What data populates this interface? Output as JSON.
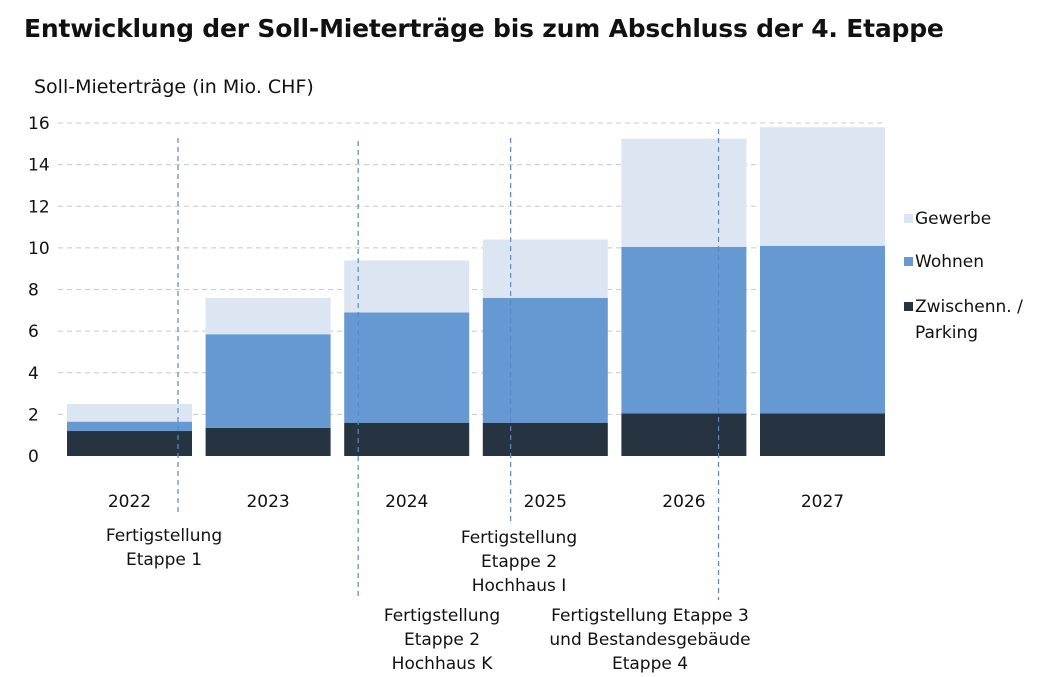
{
  "title": "Entwicklung der Soll-Mieterträge bis zum Abschluss der 4. Etappe",
  "colors": {
    "gewerbe": "#dce6f2",
    "wohnen": "#6699d1",
    "parking": "#263341",
    "grid": "#c8c8c8",
    "marker": "#5b87c6"
  },
  "chart_data": {
    "type": "bar",
    "stacked": true,
    "ylabel": "Soll-Mieterträge (in Mio. CHF)",
    "ylim": [
      0,
      16
    ],
    "yticks": [
      0,
      2,
      4,
      6,
      8,
      10,
      12,
      14,
      16
    ],
    "grid": true,
    "legend_position": "right",
    "categories": [
      "2022",
      "2023",
      "2024",
      "2025",
      "2026",
      "2027"
    ],
    "series": [
      {
        "name": "Zwischenn. / Parking",
        "color": "#263341",
        "values": [
          1.2,
          1.35,
          1.6,
          1.6,
          2.05,
          2.05
        ]
      },
      {
        "name": "Wohnen",
        "color": "#6699d1",
        "values": [
          0.45,
          4.5,
          5.3,
          6.0,
          8.0,
          8.05
        ]
      },
      {
        "name": "Gewerbe",
        "color": "#dce6f2",
        "values": [
          0.85,
          1.75,
          2.5,
          2.8,
          5.2,
          5.7
        ]
      }
    ],
    "legend_order": [
      "Gewerbe",
      "Wohnen",
      "Zwischenn. / Parking"
    ],
    "annotations": [
      {
        "text": "Fertigstellung\nEtappe 1",
        "at_category": "2022",
        "offset": 0.35
      },
      {
        "text": "Fertigstellung\nEtappe 2\nHochhaus K",
        "at_category": "2024",
        "offset": -0.35
      },
      {
        "text": "Fertigstellung\nEtappe 2\nHochhaus I",
        "at_category": "2025",
        "offset": -0.25
      },
      {
        "text": "Fertigstellung Etappe 3\nund Bestandesgebäude\nEtappe 4",
        "at_category": "2026",
        "offset": 0.25
      }
    ]
  }
}
